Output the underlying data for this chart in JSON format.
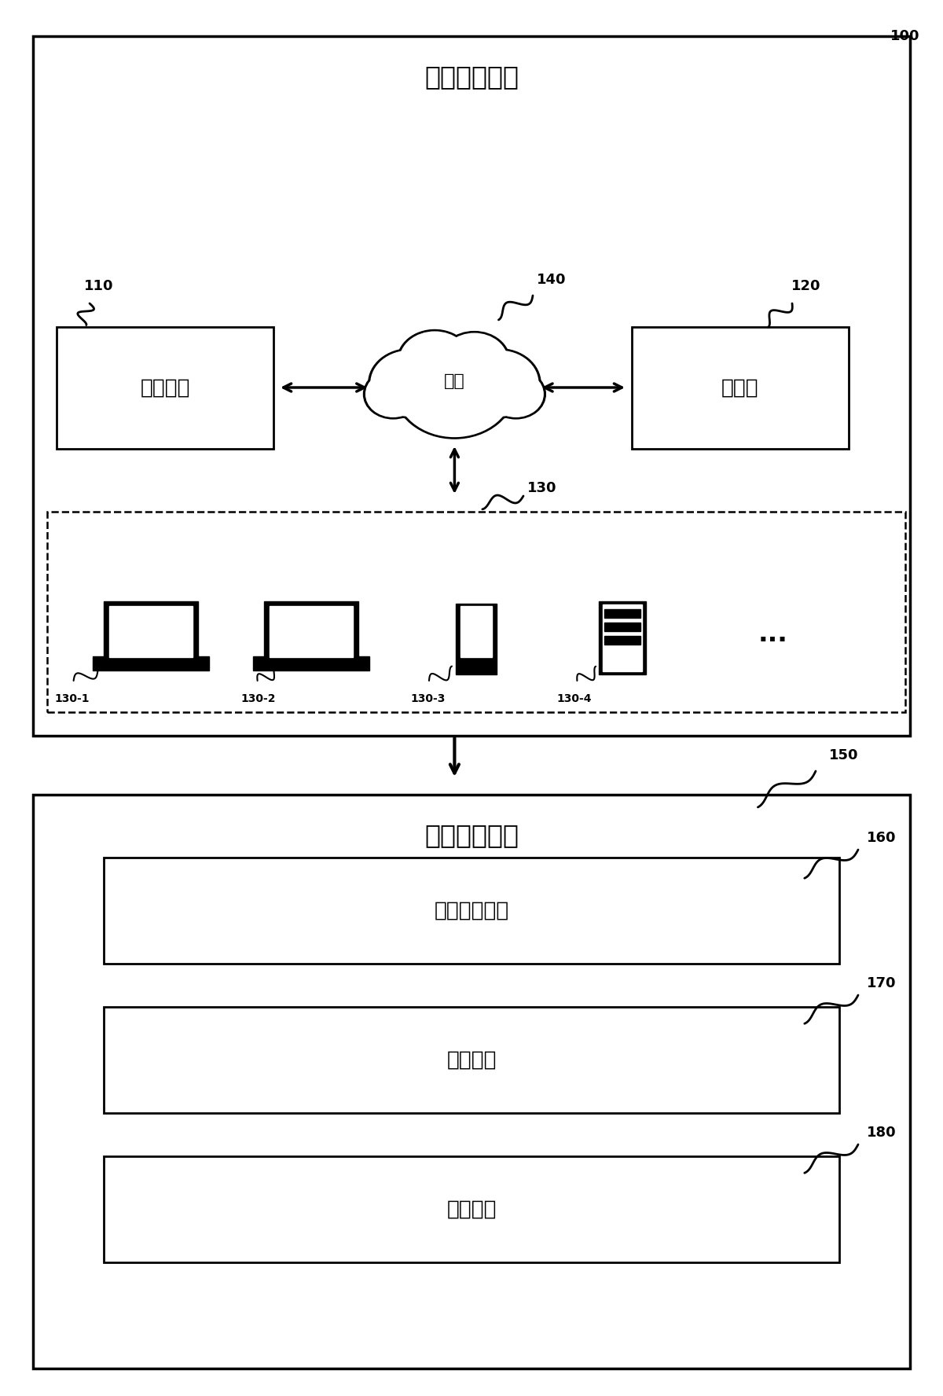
{
  "title": "医学成像系统",
  "label_100": "100",
  "label_110": "110",
  "label_120": "120",
  "label_130": "130",
  "label_140": "140",
  "label_150": "150",
  "label_160": "160",
  "label_170": "170",
  "label_180": "180",
  "label_130_1": "130-1",
  "label_130_2": "130-2",
  "label_130_3": "130-3",
  "label_130_4": "130-4",
  "box_imaging_device": "成像设备",
  "box_server": "服务器",
  "box_network": "网络",
  "box_platform": "故障诊断平台",
  "box_info": "信息获取单元",
  "box_judge": "判断单元",
  "box_scan": "扫描单元",
  "bg_color": "#ffffff",
  "line_color": "#000000",
  "font_size_title": 24,
  "font_size_label": 13,
  "font_size_box": 19,
  "font_size_sub": 18
}
